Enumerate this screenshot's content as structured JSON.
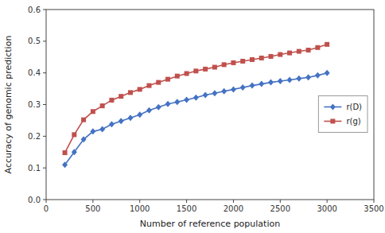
{
  "chart_data": {
    "type": "line",
    "xlabel": "Number of reference population",
    "ylabel": "Accuracy of genomic prediction",
    "x": [
      200,
      300,
      400,
      500,
      600,
      700,
      800,
      900,
      1000,
      1100,
      1200,
      1300,
      1400,
      1500,
      1600,
      1700,
      1800,
      1900,
      2000,
      2100,
      2200,
      2300,
      2400,
      2500,
      2600,
      2700,
      2800,
      2900,
      3000
    ],
    "series": [
      {
        "name": "r(D)",
        "color": "#4472C4",
        "marker": "diamond",
        "values": [
          0.11,
          0.15,
          0.19,
          0.215,
          0.222,
          0.238,
          0.248,
          0.258,
          0.268,
          0.282,
          0.292,
          0.302,
          0.308,
          0.315,
          0.322,
          0.33,
          0.336,
          0.342,
          0.348,
          0.354,
          0.36,
          0.365,
          0.37,
          0.374,
          0.378,
          0.382,
          0.386,
          0.392,
          0.4
        ]
      },
      {
        "name": "r(g)",
        "color": "#C0504D",
        "marker": "square",
        "values": [
          0.148,
          0.205,
          0.252,
          0.278,
          0.296,
          0.314,
          0.326,
          0.338,
          0.348,
          0.36,
          0.37,
          0.38,
          0.39,
          0.398,
          0.406,
          0.412,
          0.418,
          0.426,
          0.432,
          0.437,
          0.442,
          0.447,
          0.452,
          0.458,
          0.463,
          0.468,
          0.472,
          0.48,
          0.49
        ]
      }
    ],
    "xlim": [
      0,
      3500
    ],
    "ylim": [
      0,
      0.6
    ],
    "xticks": [
      0,
      500,
      1000,
      1500,
      2000,
      2500,
      3000,
      3500
    ],
    "yticks": [
      {
        "value": 0,
        "label": "0.0"
      },
      0.1,
      0.2,
      0.3,
      0.4,
      0.5,
      0.6
    ],
    "grid": false,
    "legend": "right"
  }
}
